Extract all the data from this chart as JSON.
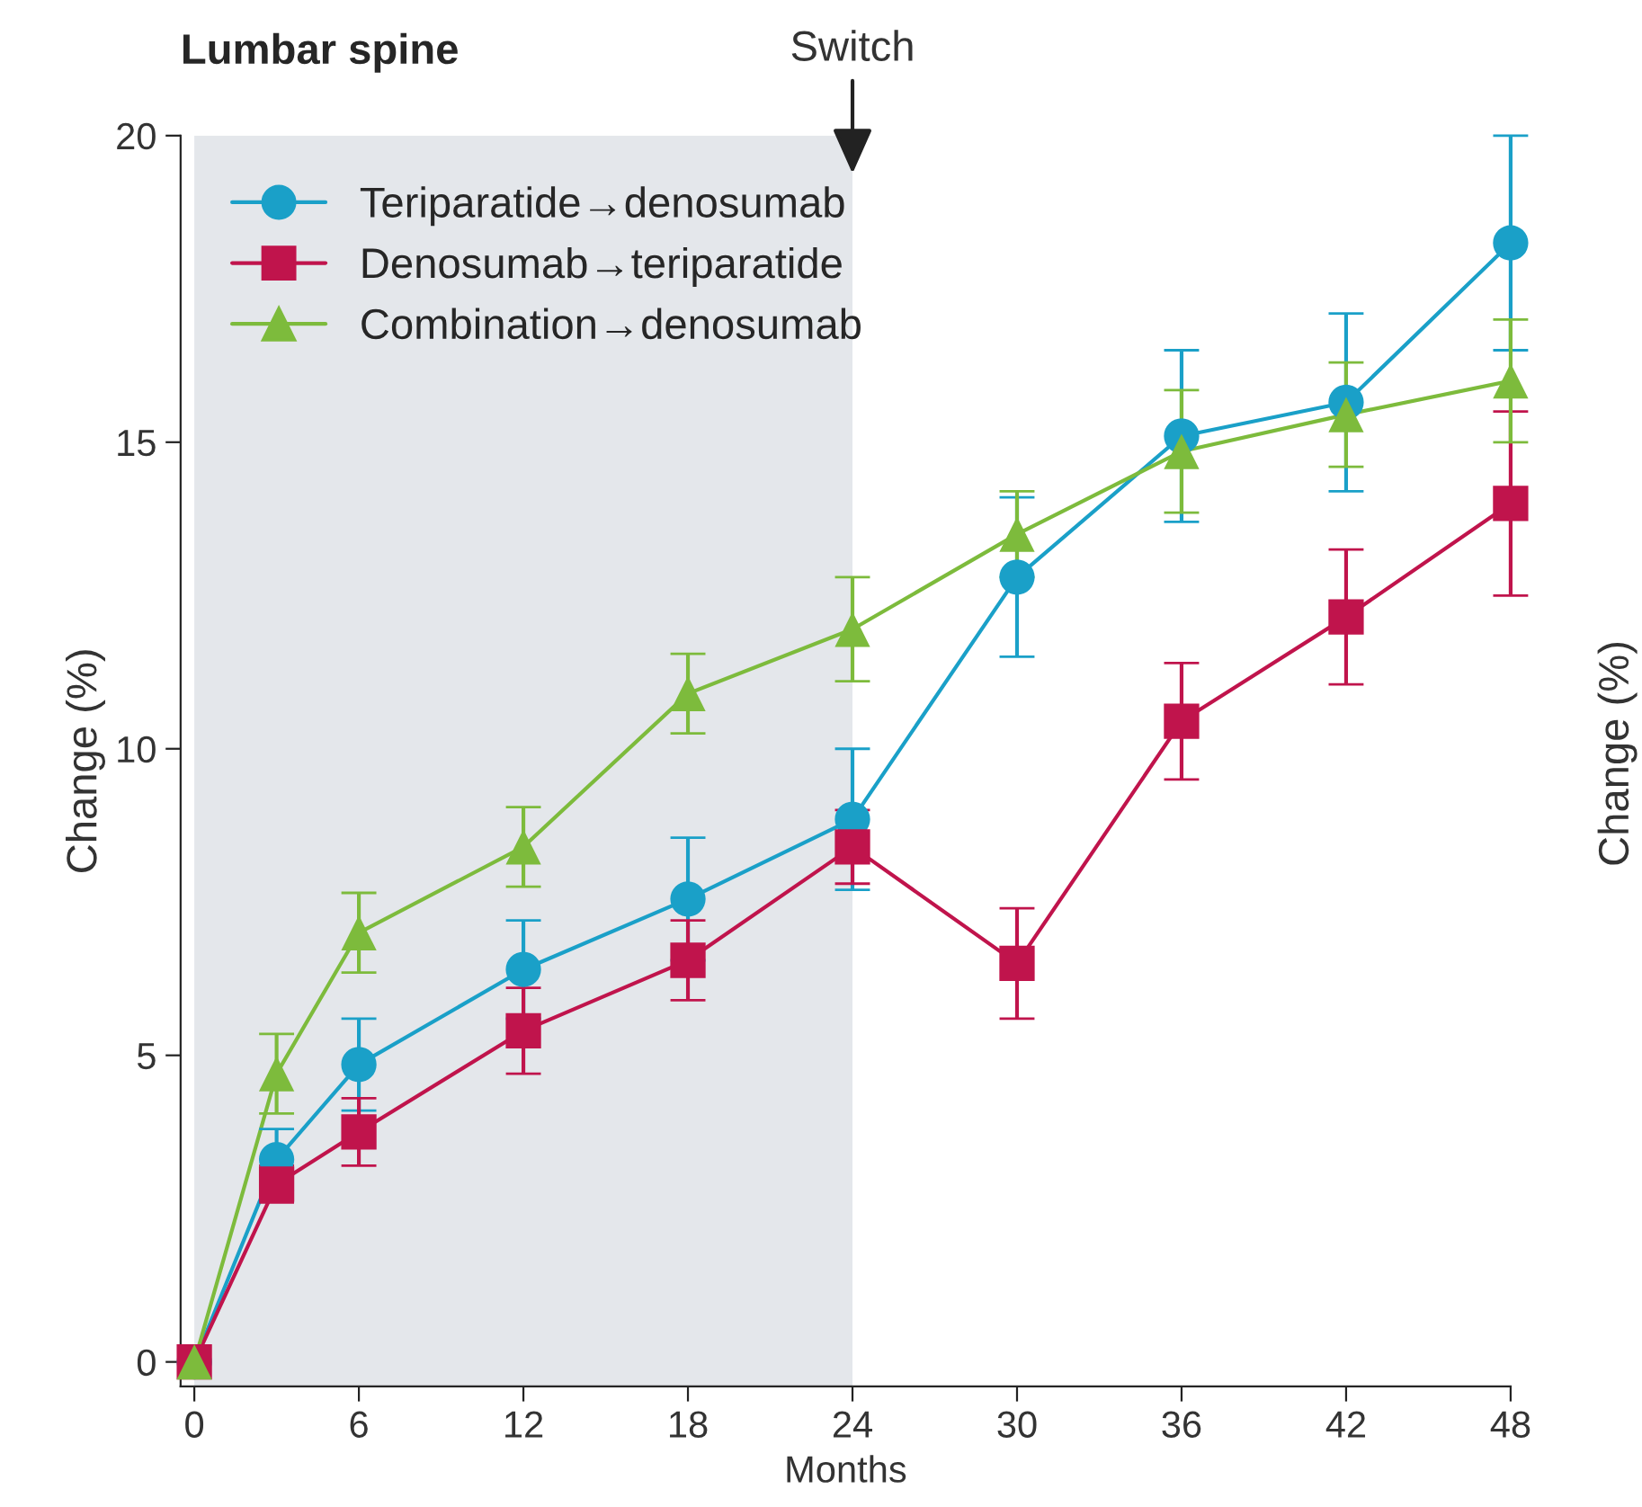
{
  "chart_data": {
    "type": "line",
    "title": "Lumbar spine",
    "xlabel": "Months",
    "ylabel": "Change (%)",
    "x": [
      0,
      3,
      6,
      12,
      18,
      24,
      30,
      36,
      42,
      48
    ],
    "xlim": [
      -0.5,
      48
    ],
    "xticks": [
      0,
      6,
      12,
      18,
      24,
      30,
      36,
      42,
      48
    ],
    "ylim": [
      -0.4,
      20
    ],
    "yticks": [
      0,
      5,
      10,
      15,
      20
    ],
    "grid": false,
    "legend": "top left",
    "bands": [
      {
        "axis": "x",
        "from": 0,
        "to": 24,
        "color": "#e4e7eb"
      }
    ],
    "annotations": [
      {
        "text": "Switch",
        "x": 24,
        "y": 20
      },
      "Change (%)"
    ],
    "series": [
      {
        "name": "Teriparatide→denosumab",
        "color": "#1aa0c8",
        "marker": "circle",
        "values": [
          0,
          3.3,
          4.85,
          6.4,
          7.55,
          8.85,
          12.8,
          15.1,
          15.65,
          18.25
        ],
        "errors": [
          null,
          0.5,
          0.75,
          0.8,
          1.0,
          1.15,
          1.3,
          1.4,
          1.45,
          1.75
        ]
      },
      {
        "name": "Denosumab→teriparatide",
        "color": "#c0144c",
        "marker": "square",
        "values": [
          0,
          2.9,
          3.75,
          5.4,
          6.55,
          8.4,
          6.5,
          10.45,
          12.15,
          14.0
        ],
        "errors": [
          null,
          0.3,
          0.55,
          0.7,
          0.65,
          0.6,
          0.9,
          0.95,
          1.1,
          1.5
        ]
      },
      {
        "name": "Combination→denosumab",
        "color": "#7dbb3c",
        "marker": "triangle",
        "values": [
          0,
          4.7,
          7.0,
          8.4,
          10.9,
          11.95,
          13.5,
          14.85,
          15.45,
          16.0
        ],
        "errors": [
          null,
          0.65,
          0.65,
          0.65,
          0.65,
          0.85,
          0.7,
          1.0,
          0.85,
          1.0
        ]
      }
    ]
  }
}
